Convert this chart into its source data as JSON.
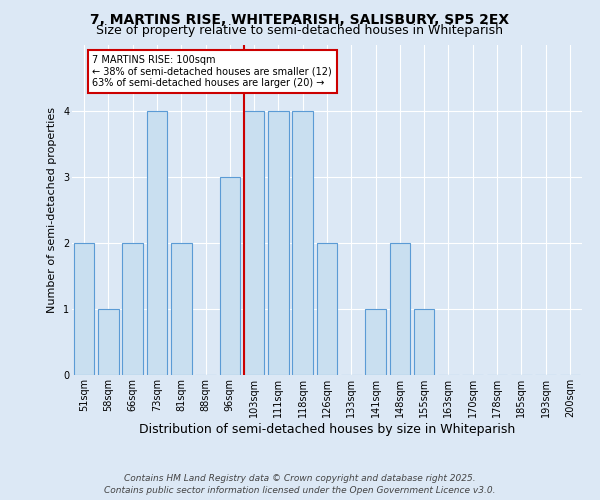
{
  "title_line1": "7, MARTINS RISE, WHITEPARISH, SALISBURY, SP5 2EX",
  "title_line2": "Size of property relative to semi-detached houses in Whiteparish",
  "categories": [
    "51sqm",
    "58sqm",
    "66sqm",
    "73sqm",
    "81sqm",
    "88sqm",
    "96sqm",
    "103sqm",
    "111sqm",
    "118sqm",
    "126sqm",
    "133sqm",
    "141sqm",
    "148sqm",
    "155sqm",
    "163sqm",
    "170sqm",
    "178sqm",
    "185sqm",
    "193sqm",
    "200sqm"
  ],
  "values": [
    2,
    1,
    2,
    4,
    2,
    0,
    3,
    4,
    4,
    4,
    2,
    0,
    1,
    2,
    1,
    0,
    0,
    0,
    0,
    0,
    0
  ],
  "bar_color": "#c9dff0",
  "bar_edge_color": "#5b9bd5",
  "highlight_index": 7,
  "highlight_line_color": "#cc0000",
  "ylabel": "Number of semi-detached properties",
  "xlabel": "Distribution of semi-detached houses by size in Whiteparish",
  "ylim": [
    0,
    5
  ],
  "yticks": [
    0,
    1,
    2,
    3,
    4,
    5
  ],
  "annotation_text": "7 MARTINS RISE: 100sqm\n← 38% of semi-detached houses are smaller (12)\n63% of semi-detached houses are larger (20) →",
  "annotation_box_color": "#ffffff",
  "annotation_box_edge_color": "#cc0000",
  "footer_line1": "Contains HM Land Registry data © Crown copyright and database right 2025.",
  "footer_line2": "Contains public sector information licensed under the Open Government Licence v3.0.",
  "bg_color": "#dce8f5",
  "plot_bg_color": "#dce8f5",
  "grid_color": "#ffffff",
  "title_fontsize": 10,
  "subtitle_fontsize": 9,
  "ylabel_fontsize": 8,
  "xlabel_fontsize": 9,
  "tick_fontsize": 7,
  "annotation_fontsize": 7,
  "footer_fontsize": 6.5
}
